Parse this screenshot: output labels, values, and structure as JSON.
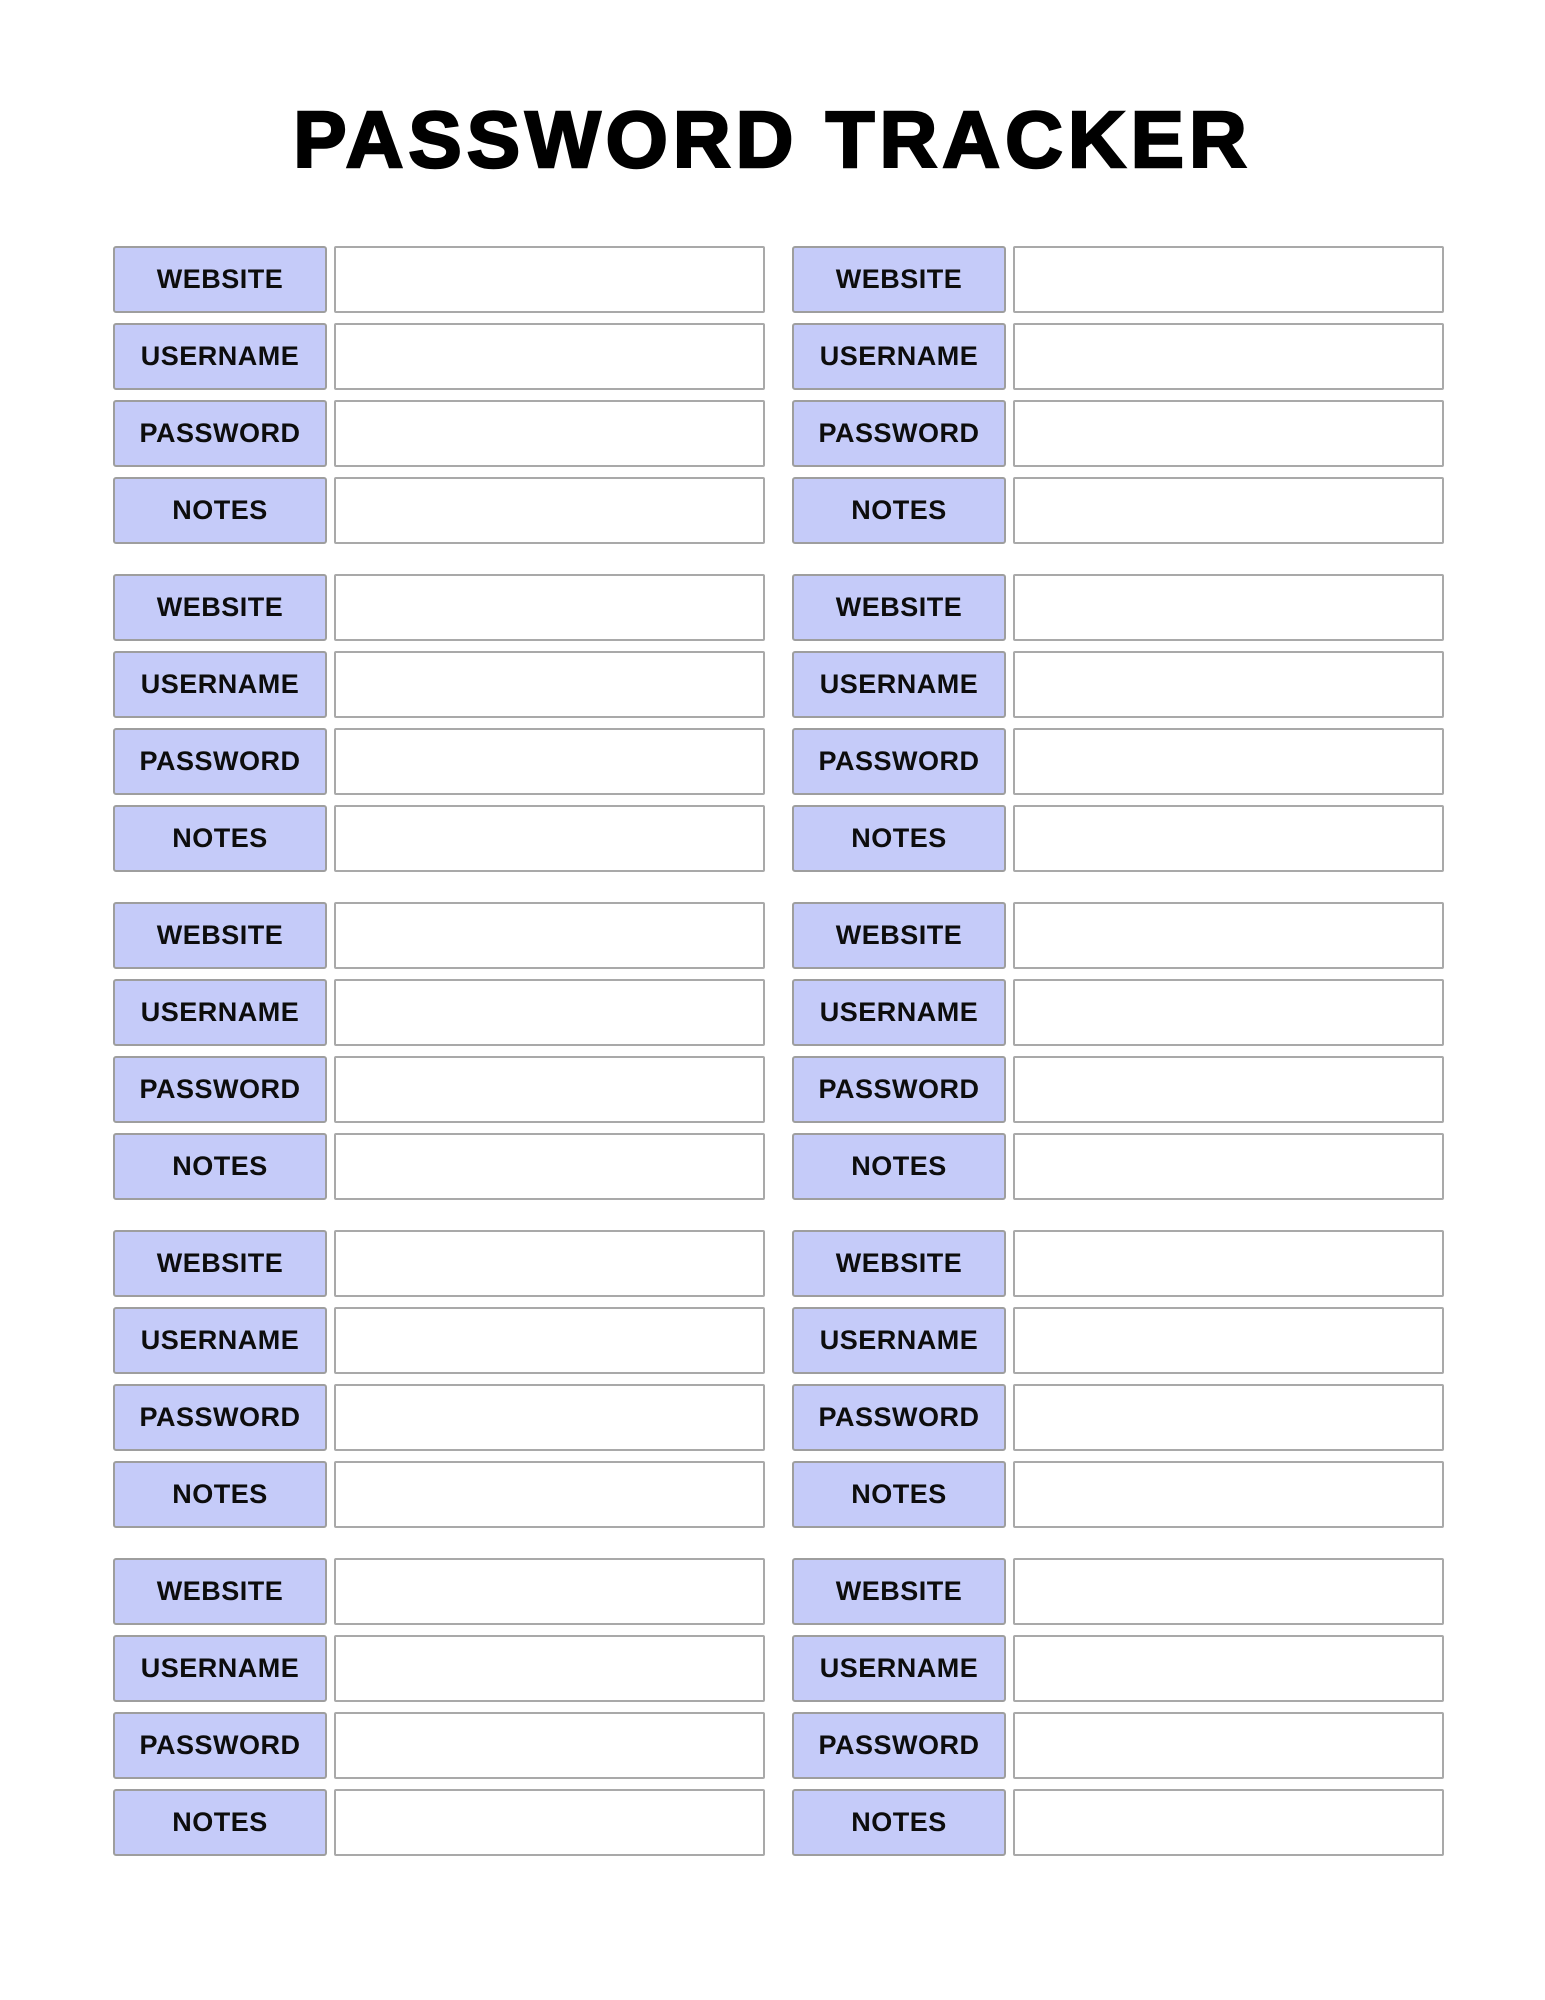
{
  "page": {
    "title": "PASSWORD TRACKER"
  },
  "colors": {
    "title_text": "#000000",
    "label_fill": "#c5cbf9",
    "label_border": "#9e9e9e",
    "input_border": "#a9a9a9",
    "label_text": "#0d0d0d"
  },
  "blocks": [
    {
      "fields": [
        {
          "label": "WEBSITE",
          "value": ""
        },
        {
          "label": "USERNAME",
          "value": ""
        },
        {
          "label": "PASSWORD",
          "value": ""
        },
        {
          "label": "NOTES",
          "value": ""
        }
      ]
    },
    {
      "fields": [
        {
          "label": "WEBSITE",
          "value": ""
        },
        {
          "label": "USERNAME",
          "value": ""
        },
        {
          "label": "PASSWORD",
          "value": ""
        },
        {
          "label": "NOTES",
          "value": ""
        }
      ]
    },
    {
      "fields": [
        {
          "label": "WEBSITE",
          "value": ""
        },
        {
          "label": "USERNAME",
          "value": ""
        },
        {
          "label": "PASSWORD",
          "value": ""
        },
        {
          "label": "NOTES",
          "value": ""
        }
      ]
    },
    {
      "fields": [
        {
          "label": "WEBSITE",
          "value": ""
        },
        {
          "label": "USERNAME",
          "value": ""
        },
        {
          "label": "PASSWORD",
          "value": ""
        },
        {
          "label": "NOTES",
          "value": ""
        }
      ]
    },
    {
      "fields": [
        {
          "label": "WEBSITE",
          "value": ""
        },
        {
          "label": "USERNAME",
          "value": ""
        },
        {
          "label": "PASSWORD",
          "value": ""
        },
        {
          "label": "NOTES",
          "value": ""
        }
      ]
    },
    {
      "fields": [
        {
          "label": "WEBSITE",
          "value": ""
        },
        {
          "label": "USERNAME",
          "value": ""
        },
        {
          "label": "PASSWORD",
          "value": ""
        },
        {
          "label": "NOTES",
          "value": ""
        }
      ]
    },
    {
      "fields": [
        {
          "label": "WEBSITE",
          "value": ""
        },
        {
          "label": "USERNAME",
          "value": ""
        },
        {
          "label": "PASSWORD",
          "value": ""
        },
        {
          "label": "NOTES",
          "value": ""
        }
      ]
    },
    {
      "fields": [
        {
          "label": "WEBSITE",
          "value": ""
        },
        {
          "label": "USERNAME",
          "value": ""
        },
        {
          "label": "PASSWORD",
          "value": ""
        },
        {
          "label": "NOTES",
          "value": ""
        }
      ]
    },
    {
      "fields": [
        {
          "label": "WEBSITE",
          "value": ""
        },
        {
          "label": "USERNAME",
          "value": ""
        },
        {
          "label": "PASSWORD",
          "value": ""
        },
        {
          "label": "NOTES",
          "value": ""
        }
      ]
    },
    {
      "fields": [
        {
          "label": "WEBSITE",
          "value": ""
        },
        {
          "label": "USERNAME",
          "value": ""
        },
        {
          "label": "PASSWORD",
          "value": ""
        },
        {
          "label": "NOTES",
          "value": ""
        }
      ]
    }
  ]
}
